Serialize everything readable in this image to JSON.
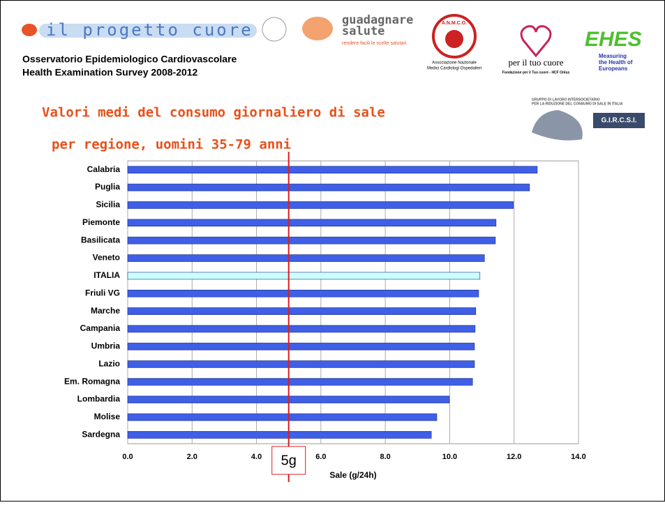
{
  "header": {
    "logo_progetto": "il progetto cuore",
    "subtitle_lines": [
      "Osservatorio Epidemiologico Cardiovascolare",
      "Health Examination Survey 2008-2012"
    ],
    "logo_guadagnare": [
      "guadagnare",
      "salute"
    ],
    "logo_guadagnare_tagline": "rendere facili le scelte salutari",
    "logo_anmco": "A.N.M.C.O.",
    "logo_anmco_caption": [
      "Associazione Nazionale",
      "Medici Cardiologi Ospedalieri"
    ],
    "logo_tuocuore": "per il tuo cuore",
    "logo_tuocuore_caption": "Fondazione per il Tuo cuore - HCF Onlus",
    "logo_ehes": "EHES",
    "logo_ehes_caption": [
      "Measuring",
      "the Health of",
      "Europeans"
    ],
    "logo_gircsi_caption": [
      "GRUPPO DI LAVORO INTERSOCIETARIO",
      "PER LA RIDUZIONE DEL CONSUMO DI SALE IN ITALIA"
    ],
    "logo_gircsi": "G.I.R.C.S.I."
  },
  "chart_data": {
    "type": "bar",
    "orientation": "horizontal",
    "title": "Valori medi del consumo giornaliero di sale",
    "subtitle": "per regione, uomini 35-79 anni",
    "x_label": "Sale (g/24h)",
    "categories": [
      "Calabria",
      "Puglia",
      "Sicilia",
      "Piemonte",
      "Basilicata",
      "Veneto",
      "ITALIA",
      "Friuli VG",
      "Marche",
      "Campania",
      "Umbria",
      "Lazio",
      "Em. Romagna",
      "Lombardia",
      "Molise",
      "Sardegna"
    ],
    "values": [
      12.72,
      12.48,
      11.98,
      11.44,
      11.42,
      11.08,
      10.94,
      10.9,
      10.81,
      10.79,
      10.77,
      10.77,
      10.71,
      9.99,
      9.6,
      9.43
    ],
    "colors": [
      "#3f5fe6",
      "#3f5fe6",
      "#3f5fe6",
      "#3f5fe6",
      "#3f5fe6",
      "#3f5fe6",
      "#ccffff",
      "#3f5fe6",
      "#3f5fe6",
      "#3f5fe6",
      "#3f5fe6",
      "#3f5fe6",
      "#3f5fe6",
      "#3f5fe6",
      "#3f5fe6",
      "#3f5fe6"
    ],
    "xlim": [
      0,
      14
    ],
    "xticks": [
      {
        "value": 0,
        "label": "0.0"
      },
      {
        "value": 2,
        "label": "2.0"
      },
      {
        "value": 4,
        "label": "4.0"
      },
      {
        "value": 6,
        "label": "6.0"
      },
      {
        "value": 8,
        "label": "8.0"
      },
      {
        "value": 10,
        "label": "10.0"
      },
      {
        "value": 12,
        "label": "12.0"
      },
      {
        "value": 14,
        "label": "14.0"
      }
    ],
    "grid": true,
    "reference_line": {
      "value": 5,
      "label": "5g",
      "color": "#d81e1e"
    }
  }
}
